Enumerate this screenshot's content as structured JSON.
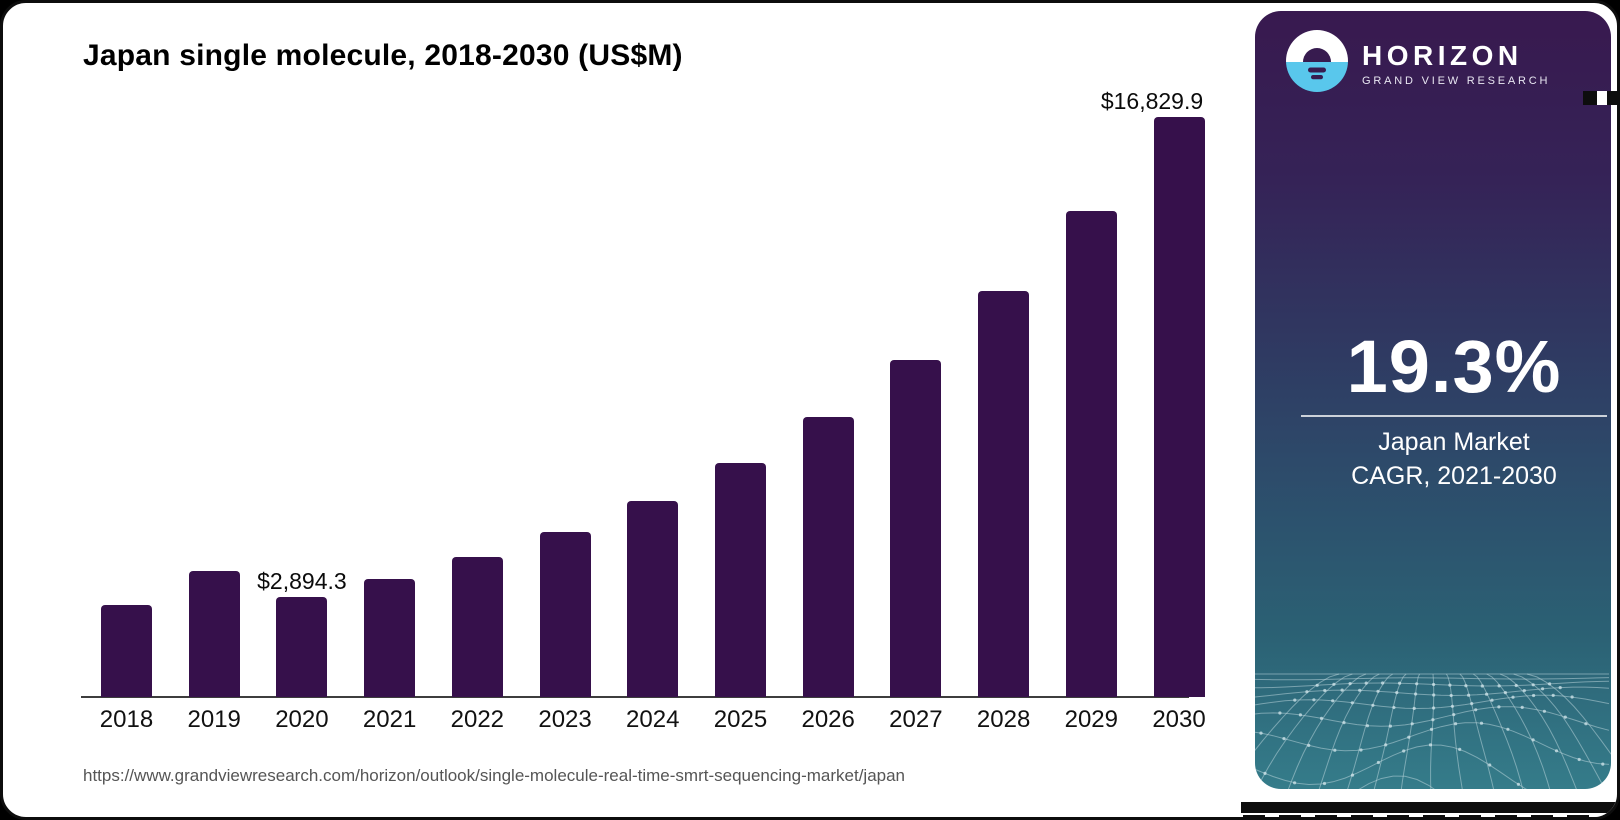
{
  "chart": {
    "title": "Japan single molecule, 2018-2030 (US$M)",
    "source_url": "https://www.grandviewresearch.com/horizon/outlook/single-molecule-real-time-smrt-sequencing-market/japan"
  },
  "chart_data": {
    "type": "bar",
    "title": "Japan single molecule, 2018-2030 (US$M)",
    "unit": "US$M",
    "categories": [
      "2018",
      "2019",
      "2020",
      "2021",
      "2022",
      "2023",
      "2024",
      "2025",
      "2026",
      "2027",
      "2028",
      "2029",
      "2030"
    ],
    "values": [
      2670,
      3650,
      2894.3,
      3420,
      4060,
      4790,
      5680,
      6790,
      8120,
      9770,
      11770,
      14090,
      16829.9
    ],
    "labeled_points": [
      {
        "category": "2020",
        "label": "$2,894.3"
      },
      {
        "category": "2030",
        "label": "$16,829.9"
      }
    ],
    "bar_color": "#36104B",
    "axis_color": "#3D3D3D",
    "ylim": [
      0,
      17500
    ],
    "grid": false,
    "legend": "none"
  },
  "sidebar": {
    "brand": {
      "name": "HORIZON",
      "subtitle": "GRAND VIEW RESEARCH"
    },
    "stat": {
      "value": "19.3%",
      "label_line1": "Japan Market",
      "label_line2": "CAGR, 2021-2030"
    },
    "colors": {
      "logo_blue": "#59C7EC",
      "logo_dark": "#371B4F",
      "gradient_top": "#38194F",
      "gradient_bottom": "#357C8A",
      "bar_purple": "#36104B"
    }
  }
}
